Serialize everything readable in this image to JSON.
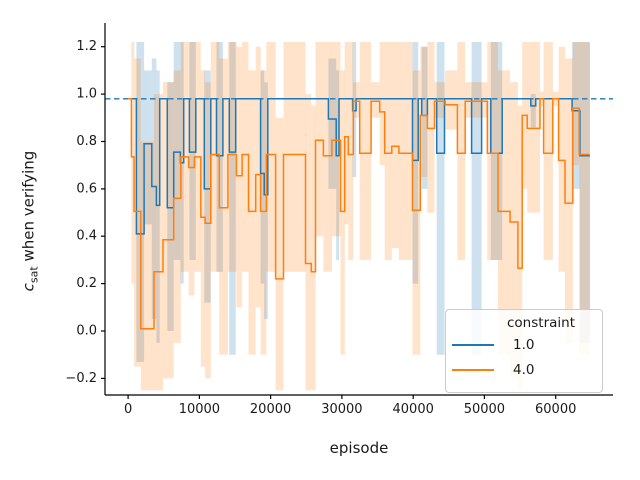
{
  "figure": {
    "background": "#ffffff",
    "text_color": "#1a1a1a",
    "spine_color": "#000000"
  },
  "ylabel_parts": {
    "var": "c",
    "sub": "sat",
    "rest": " when verifying"
  },
  "chart_data": {
    "type": "line",
    "subtype": "step-with-confidence-bands",
    "title": "",
    "xlabel": "episode",
    "ylabel": "c_sat when verifying",
    "grid": false,
    "xlim": [
      -3240,
      68040
    ],
    "ylim": [
      -0.27,
      1.3
    ],
    "xticks": [
      0,
      10000,
      20000,
      30000,
      40000,
      50000,
      60000
    ],
    "xtick_labels": [
      "0",
      "10000",
      "20000",
      "30000",
      "40000",
      "50000",
      "60000"
    ],
    "yticks": [
      -0.2,
      0.0,
      0.2,
      0.4,
      0.6,
      0.8,
      1.0,
      1.2
    ],
    "ytick_labels": [
      "−0.2",
      "0.0",
      "0.2",
      "0.4",
      "0.6",
      "0.8",
      "1.0",
      "1.2"
    ],
    "reference_line": {
      "y": 0.98,
      "style": "dashed",
      "color": "#1f77b4"
    },
    "x_end": 64800,
    "band_opacity": 0.22,
    "legend": {
      "title": "constraint",
      "position": "lower right",
      "entries": [
        {
          "label": "1.0",
          "color": "#1f77b4"
        },
        {
          "label": "4.0",
          "color": "#ff7f0e"
        }
      ]
    },
    "series": [
      {
        "name": "1.0",
        "color": "#1f77b4",
        "points_format": [
          "episode",
          "value",
          "ci_low",
          "ci_high"
        ],
        "points": [
          [
            600,
            0.98,
            0.98,
            0.98
          ],
          [
            1160,
            0.41,
            -0.13,
            1.22
          ],
          [
            2240,
            0.79,
            0.45,
            1.1
          ],
          [
            3320,
            0.61,
            0.05,
            1.15
          ],
          [
            3970,
            0.53,
            -0.05,
            1.1
          ],
          [
            4440,
            0.98,
            0.98,
            0.98
          ],
          [
            5500,
            0.52,
            0.0,
            1.05
          ],
          [
            6400,
            0.755,
            0.3,
            1.22
          ],
          [
            7340,
            0.71,
            0.2,
            1.22
          ],
          [
            7800,
            0.98,
            0.98,
            0.98
          ],
          [
            8600,
            0.755,
            0.3,
            1.22
          ],
          [
            9500,
            0.98,
            0.98,
            0.98
          ],
          [
            10700,
            0.6,
            0.12,
            1.1
          ],
          [
            11600,
            0.98,
            0.98,
            0.98
          ],
          [
            12400,
            0.74,
            0.25,
            1.22
          ],
          [
            13300,
            0.98,
            0.98,
            0.98
          ],
          [
            14200,
            0.755,
            -0.1,
            1.22
          ],
          [
            15100,
            0.98,
            0.98,
            0.98
          ],
          [
            18600,
            0.665,
            0.2,
            1.1
          ],
          [
            19100,
            0.575,
            0.05,
            1.05
          ],
          [
            19600,
            0.98,
            0.98,
            0.98
          ],
          [
            28100,
            0.895,
            0.6,
            1.15
          ],
          [
            29200,
            0.74,
            0.3,
            1.1
          ],
          [
            29600,
            0.98,
            0.98,
            0.98
          ],
          [
            31500,
            0.93,
            0.65,
            1.22
          ],
          [
            32000,
            0.98,
            0.98,
            0.98
          ],
          [
            39900,
            0.72,
            0.2,
            1.22
          ],
          [
            40700,
            0.98,
            0.98,
            0.98
          ],
          [
            41200,
            0.91,
            0.6,
            1.2
          ],
          [
            42000,
            0.98,
            0.98,
            0.98
          ],
          [
            43300,
            0.75,
            -0.1,
            1.22
          ],
          [
            44400,
            0.98,
            0.98,
            0.98
          ],
          [
            48200,
            0.75,
            -0.1,
            1.22
          ],
          [
            49600,
            0.98,
            0.98,
            0.98
          ],
          [
            50900,
            0.75,
            0.3,
            1.22
          ],
          [
            52500,
            0.98,
            0.98,
            0.98
          ],
          [
            56500,
            0.95,
            0.86,
            1.0
          ],
          [
            57200,
            0.98,
            0.98,
            0.98
          ],
          [
            62300,
            0.93,
            0.6,
            1.22
          ],
          [
            63400,
            0.74,
            -0.05,
            1.22
          ]
        ]
      },
      {
        "name": "4.0",
        "color": "#ff7f0e",
        "points_format": [
          "episode",
          "value",
          "ci_low",
          "ci_high"
        ],
        "points": [
          [
            0,
            0.98,
            0.98,
            0.98
          ],
          [
            460,
            0.735,
            0.2,
            1.22
          ],
          [
            850,
            0.505,
            -0.15,
            1.15
          ],
          [
            1790,
            0.01,
            -0.25,
            0.8
          ],
          [
            3640,
            0.25,
            -0.25,
            1.0
          ],
          [
            4900,
            0.385,
            -0.2,
            1.05
          ],
          [
            6400,
            0.56,
            -0.05,
            1.1
          ],
          [
            7400,
            0.735,
            0.25,
            1.22
          ],
          [
            8500,
            0.69,
            0.15,
            1.22
          ],
          [
            9300,
            0.735,
            0.25,
            1.22
          ],
          [
            10200,
            0.48,
            -0.15,
            1.1
          ],
          [
            10800,
            0.455,
            -0.2,
            1.05
          ],
          [
            11600,
            0.745,
            0.25,
            1.22
          ],
          [
            12800,
            0.52,
            -0.1,
            1.15
          ],
          [
            14000,
            0.745,
            0.25,
            1.22
          ],
          [
            15200,
            0.655,
            0.1,
            1.2
          ],
          [
            16000,
            0.745,
            0.25,
            1.22
          ],
          [
            16900,
            0.505,
            -0.1,
            1.1
          ],
          [
            17900,
            0.66,
            0.1,
            1.2
          ],
          [
            18600,
            0.505,
            -0.1,
            1.1
          ],
          [
            19400,
            0.745,
            0.25,
            1.22
          ],
          [
            20700,
            0.22,
            -0.25,
            0.9
          ],
          [
            21800,
            0.745,
            0.25,
            1.22
          ],
          [
            24900,
            0.285,
            -0.25,
            1.0
          ],
          [
            25700,
            0.25,
            -0.25,
            0.95
          ],
          [
            26300,
            0.805,
            0.4,
            1.22
          ],
          [
            27400,
            0.74,
            0.25,
            1.22
          ],
          [
            28600,
            0.805,
            0.4,
            1.22
          ],
          [
            29800,
            0.505,
            -0.1,
            1.1
          ],
          [
            30400,
            0.82,
            0.45,
            1.22
          ],
          [
            30900,
            0.745,
            0.3,
            1.22
          ],
          [
            31600,
            0.97,
            0.9,
            1.05
          ],
          [
            32500,
            0.75,
            0.3,
            1.22
          ],
          [
            34100,
            0.97,
            0.9,
            1.05
          ],
          [
            35300,
            0.925,
            0.7,
            1.22
          ],
          [
            36000,
            0.75,
            0.3,
            1.22
          ],
          [
            37000,
            0.78,
            0.35,
            1.22
          ],
          [
            38000,
            0.75,
            0.3,
            1.22
          ],
          [
            39900,
            0.51,
            -0.1,
            1.1
          ],
          [
            41000,
            0.91,
            0.65,
            1.2
          ],
          [
            42000,
            0.855,
            0.5,
            1.22
          ],
          [
            43000,
            0.97,
            0.9,
            1.05
          ],
          [
            44500,
            0.955,
            0.85,
            1.1
          ],
          [
            46200,
            0.75,
            0.3,
            1.22
          ],
          [
            47300,
            0.97,
            0.9,
            1.05
          ],
          [
            50400,
            0.75,
            0.3,
            1.22
          ],
          [
            51900,
            0.505,
            -0.1,
            1.1
          ],
          [
            53600,
            0.46,
            -0.2,
            1.05
          ],
          [
            54700,
            0.265,
            -0.25,
            0.95
          ],
          [
            55300,
            0.91,
            0.6,
            1.22
          ],
          [
            56000,
            0.855,
            0.5,
            1.22
          ],
          [
            57800,
            0.98,
            0.95,
            1.01
          ],
          [
            58300,
            0.75,
            0.3,
            1.22
          ],
          [
            59600,
            0.98,
            0.95,
            1.01
          ],
          [
            60400,
            0.72,
            0.25,
            1.2
          ],
          [
            61300,
            0.54,
            -0.05,
            1.15
          ],
          [
            62400,
            0.94,
            0.7,
            1.22
          ],
          [
            63300,
            0.745,
            -0.1,
            1.22
          ]
        ]
      }
    ]
  }
}
